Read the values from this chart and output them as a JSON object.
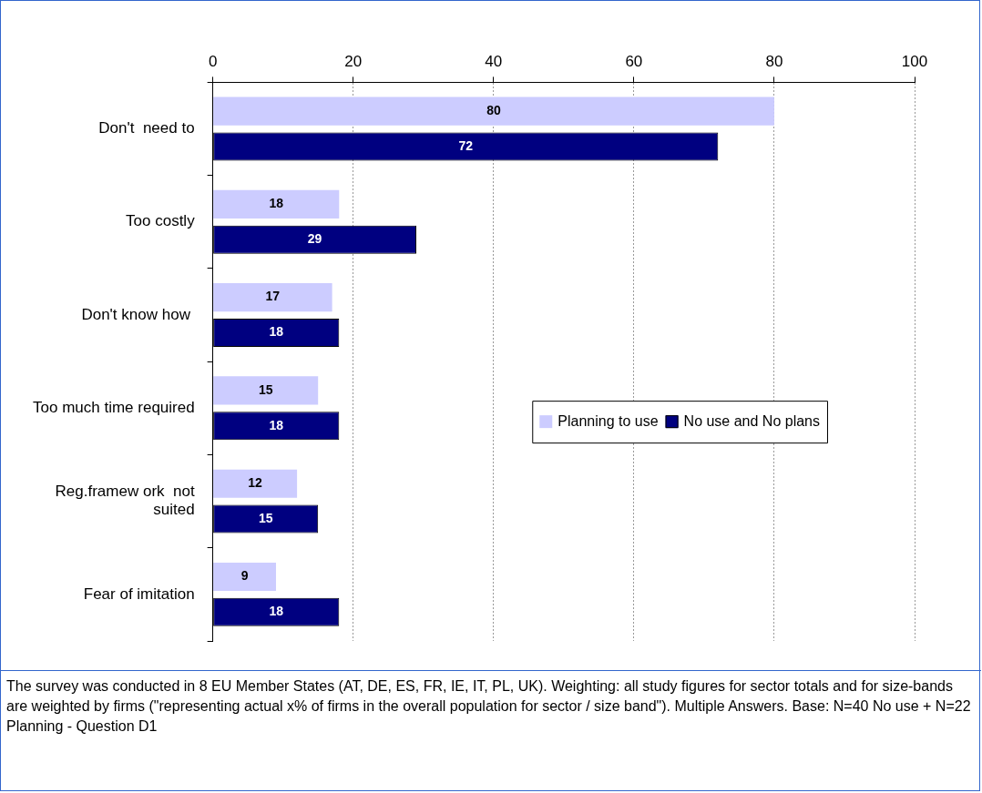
{
  "chart_data": {
    "type": "bar",
    "orientation": "horizontal",
    "categories": [
      "Don't  need to",
      "Too costly",
      "Don't know how ",
      "Too much time required",
      "Reg.framew ork  not\nsuited",
      "Fear of imitation"
    ],
    "series": [
      {
        "name": "Planning to use",
        "color": "#ccccff",
        "values": [
          80,
          18,
          17,
          15,
          12,
          9
        ]
      },
      {
        "name": "No use and No plans",
        "color": "#000080",
        "values": [
          72,
          29,
          18,
          18,
          15,
          18
        ]
      }
    ],
    "xlim": [
      0,
      100
    ],
    "xticks": [
      0,
      20,
      40,
      60,
      80,
      100
    ],
    "grid": "x",
    "legend": "right",
    "data_labels": true,
    "annotations": [
      "The survey was conducted in 8 EU Member States (AT, DE, ES, FR, IE, IT, PL, UK). Weighting: all study figures for sector totals and for size-bands are weighted by firms (\"representing actual x% of firms in the overall population for sector / size band\"). Multiple Answers. Base: N=40 No use + N=22 Planning - Question D1"
    ]
  }
}
